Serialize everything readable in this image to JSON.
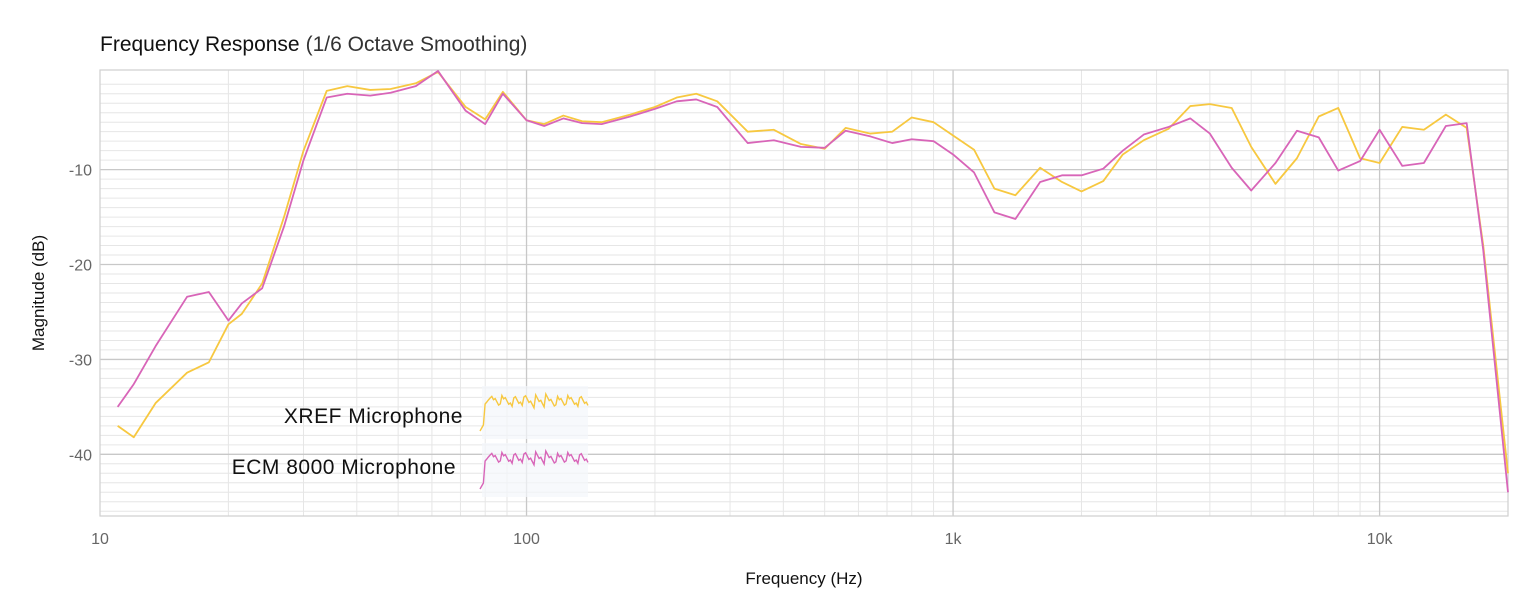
{
  "chart_data": {
    "type": "line",
    "title": "Frequency Response",
    "subtitle": "(1/6 Octave Smoothing)",
    "xlabel": "Frequency (Hz)",
    "ylabel": "Magnitude (dB)",
    "x_scale": "log",
    "xlim": [
      10,
      20000
    ],
    "ylim": [
      -46.5,
      0.5
    ],
    "x_ticks": [
      10,
      100,
      1000,
      10000
    ],
    "x_tick_labels": [
      "10",
      "100",
      "1k",
      "10k"
    ],
    "y_ticks": [
      -10,
      -20,
      -30,
      -40
    ],
    "y_tick_labels": [
      "-10",
      "-20",
      "-30",
      "-40"
    ],
    "grid": true,
    "legend_position": "bottom-left",
    "series": [
      {
        "name": "XREF Microphone",
        "color": "#F7C840",
        "points": [
          [
            11,
            -37.0
          ],
          [
            12,
            -38.2
          ],
          [
            13.5,
            -34.6
          ],
          [
            16,
            -31.4
          ],
          [
            18,
            -30.3
          ],
          [
            20,
            -26.3
          ],
          [
            21.5,
            -25.2
          ],
          [
            24,
            -22.0
          ],
          [
            27,
            -15.0
          ],
          [
            30,
            -8.0
          ],
          [
            34,
            -1.7
          ],
          [
            38,
            -1.2
          ],
          [
            43,
            -1.6
          ],
          [
            48,
            -1.5
          ],
          [
            55,
            -0.9
          ],
          [
            62,
            0.3
          ],
          [
            72,
            -3.4
          ],
          [
            80,
            -4.7
          ],
          [
            88,
            -1.8
          ],
          [
            100,
            -4.8
          ],
          [
            110,
            -5.2
          ],
          [
            122,
            -4.3
          ],
          [
            135,
            -4.9
          ],
          [
            150,
            -5.0
          ],
          [
            175,
            -4.2
          ],
          [
            200,
            -3.4
          ],
          [
            225,
            -2.4
          ],
          [
            250,
            -2.0
          ],
          [
            280,
            -2.8
          ],
          [
            330,
            -6.0
          ],
          [
            380,
            -5.8
          ],
          [
            440,
            -7.3
          ],
          [
            500,
            -7.8
          ],
          [
            560,
            -5.6
          ],
          [
            640,
            -6.2
          ],
          [
            720,
            -6.0
          ],
          [
            800,
            -4.5
          ],
          [
            900,
            -5.0
          ],
          [
            1000,
            -6.4
          ],
          [
            1120,
            -7.9
          ],
          [
            1250,
            -12.0
          ],
          [
            1400,
            -12.7
          ],
          [
            1600,
            -9.8
          ],
          [
            1800,
            -11.3
          ],
          [
            2000,
            -12.3
          ],
          [
            2250,
            -11.2
          ],
          [
            2500,
            -8.4
          ],
          [
            2800,
            -6.9
          ],
          [
            3200,
            -5.7
          ],
          [
            3600,
            -3.3
          ],
          [
            4000,
            -3.1
          ],
          [
            4500,
            -3.5
          ],
          [
            5000,
            -7.6
          ],
          [
            5700,
            -11.5
          ],
          [
            6400,
            -8.8
          ],
          [
            7200,
            -4.4
          ],
          [
            8000,
            -3.5
          ],
          [
            9000,
            -8.8
          ],
          [
            10000,
            -9.3
          ],
          [
            11300,
            -5.5
          ],
          [
            12700,
            -5.8
          ],
          [
            14300,
            -4.2
          ],
          [
            16000,
            -5.6
          ],
          [
            17500,
            -18.0
          ],
          [
            20000,
            -42.0
          ]
        ]
      },
      {
        "name": "ECM 8000 Microphone",
        "color": "#D865B8",
        "points": [
          [
            11,
            -35.0
          ],
          [
            12,
            -32.6
          ],
          [
            13.5,
            -28.6
          ],
          [
            16,
            -23.4
          ],
          [
            18,
            -22.9
          ],
          [
            20,
            -25.9
          ],
          [
            21.5,
            -24.1
          ],
          [
            24,
            -22.5
          ],
          [
            27,
            -16.0
          ],
          [
            30,
            -9.0
          ],
          [
            34,
            -2.4
          ],
          [
            38,
            -2.0
          ],
          [
            43,
            -2.2
          ],
          [
            48,
            -1.9
          ],
          [
            55,
            -1.2
          ],
          [
            62,
            0.4
          ],
          [
            72,
            -3.8
          ],
          [
            80,
            -5.2
          ],
          [
            88,
            -2.0
          ],
          [
            100,
            -4.8
          ],
          [
            110,
            -5.4
          ],
          [
            122,
            -4.6
          ],
          [
            135,
            -5.1
          ],
          [
            150,
            -5.2
          ],
          [
            175,
            -4.4
          ],
          [
            200,
            -3.6
          ],
          [
            225,
            -2.8
          ],
          [
            250,
            -2.6
          ],
          [
            280,
            -3.4
          ],
          [
            330,
            -7.2
          ],
          [
            380,
            -6.9
          ],
          [
            440,
            -7.6
          ],
          [
            500,
            -7.7
          ],
          [
            560,
            -5.9
          ],
          [
            640,
            -6.5
          ],
          [
            720,
            -7.2
          ],
          [
            800,
            -6.8
          ],
          [
            900,
            -7.0
          ],
          [
            1000,
            -8.4
          ],
          [
            1120,
            -10.3
          ],
          [
            1250,
            -14.5
          ],
          [
            1400,
            -15.2
          ],
          [
            1600,
            -11.3
          ],
          [
            1800,
            -10.6
          ],
          [
            2000,
            -10.6
          ],
          [
            2250,
            -9.9
          ],
          [
            2500,
            -8.0
          ],
          [
            2800,
            -6.3
          ],
          [
            3200,
            -5.5
          ],
          [
            3600,
            -4.6
          ],
          [
            4000,
            -6.2
          ],
          [
            4500,
            -9.8
          ],
          [
            5000,
            -12.2
          ],
          [
            5700,
            -9.3
          ],
          [
            6400,
            -5.9
          ],
          [
            7200,
            -6.6
          ],
          [
            8000,
            -10.1
          ],
          [
            9000,
            -9.1
          ],
          [
            10000,
            -5.8
          ],
          [
            11300,
            -9.6
          ],
          [
            12700,
            -9.3
          ],
          [
            14300,
            -5.4
          ],
          [
            16000,
            -5.1
          ],
          [
            17500,
            -18.5
          ],
          [
            20000,
            -44.0
          ]
        ]
      }
    ]
  }
}
